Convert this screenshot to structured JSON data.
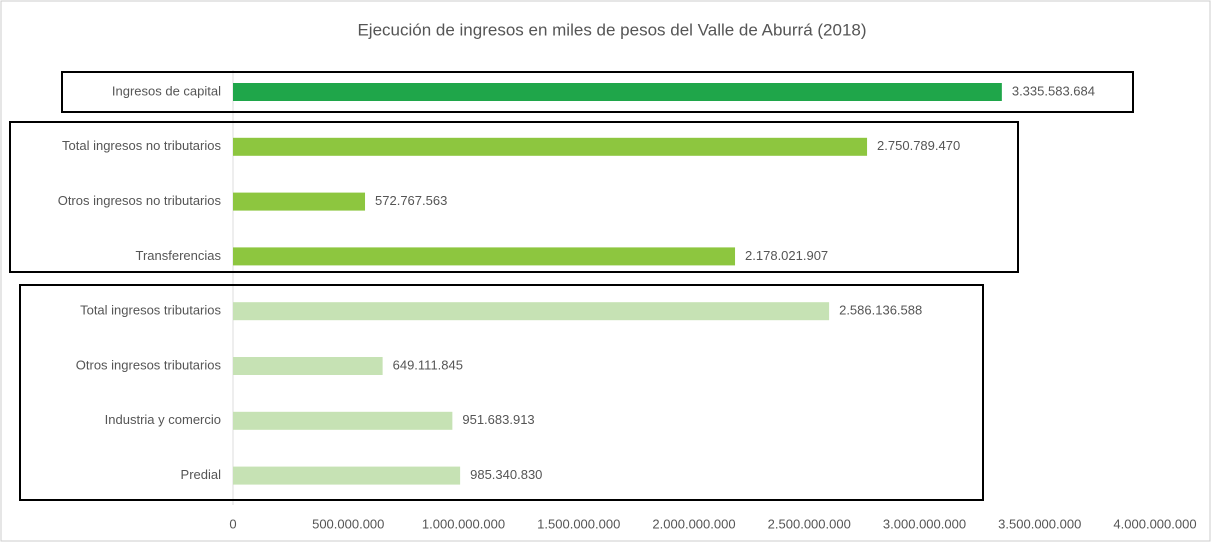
{
  "chart_data": {
    "type": "bar",
    "orientation": "horizontal",
    "title": "Ejecución de ingresos en miles de pesos del Valle de Aburrá (2018)",
    "categories": [
      "Ingresos de capital",
      "Total ingresos no tributarios",
      "Otros ingresos no tributarios",
      "Transferencias",
      "Total ingresos tributarios",
      "Otros ingresos tributarios",
      "Industria y comercio",
      "Predial"
    ],
    "values": [
      3335583684,
      2750789470,
      572767563,
      2178021907,
      2586136588,
      649111845,
      951683913,
      985340830
    ],
    "value_labels": [
      "3.335.583.684",
      "2.750.789.470",
      "572.767.563",
      "2.178.021.907",
      "2.586.136.588",
      "649.111.845",
      "951.683.913",
      "985.340.830"
    ],
    "colors": [
      "#1fa64a",
      "#8dc63f",
      "#8dc63f",
      "#8dc63f",
      "#c6e2b4",
      "#c6e2b4",
      "#c6e2b4",
      "#c6e2b4"
    ],
    "xlim": [
      0,
      4000000000
    ],
    "xticks": [
      0,
      {
        "value": 500000000,
        "label": "500.000.000"
      },
      {
        "value": 1000000000,
        "label": "1.000.000.000"
      },
      {
        "value": 1500000000,
        "label": "1.500.000.000"
      },
      {
        "value": 2000000000,
        "label": "2.000.000.000"
      },
      {
        "value": 2500000000,
        "label": "2.500.000.000"
      },
      {
        "value": 3000000000,
        "label": "3.000.000.000"
      },
      {
        "value": 3500000000,
        "label": "3.500.000.000"
      },
      {
        "value": 4000000000,
        "label": "4.000.000.000"
      }
    ]
  }
}
